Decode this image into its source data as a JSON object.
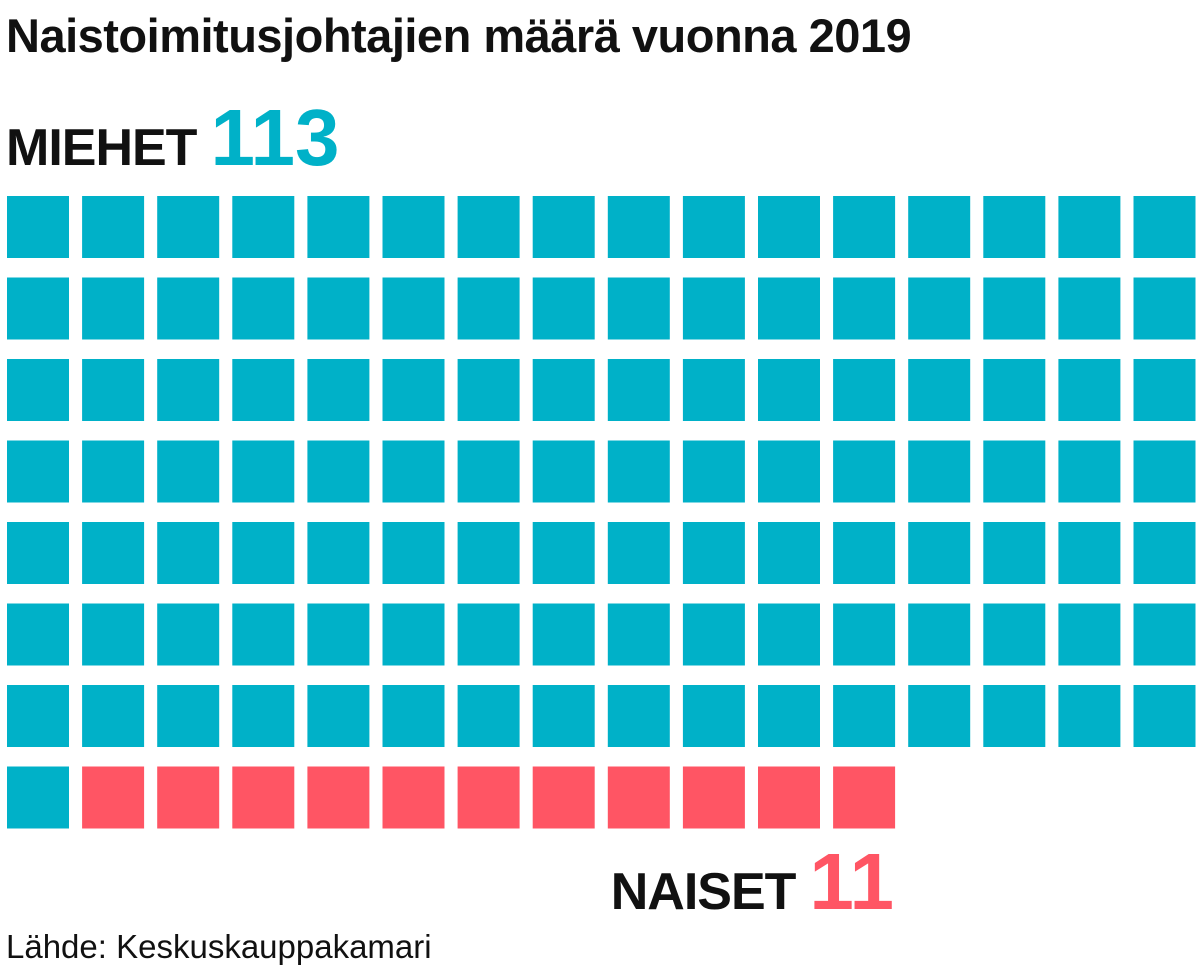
{
  "chart_data": {
    "type": "waffle",
    "title": "Naistoimitusjohtajien määrä vuonna 2019",
    "units_per_row": 16,
    "categories": [
      {
        "name": "MIEHET",
        "value": 113,
        "color": "#00b1c8"
      },
      {
        "name": "NAISET",
        "value": 11,
        "color": "#ff5564"
      }
    ],
    "source": "Lähde: Keskuskauppakamari"
  },
  "men": {
    "label": "MIEHET",
    "value": "113"
  },
  "women": {
    "label": "NAISET",
    "value": "11"
  }
}
